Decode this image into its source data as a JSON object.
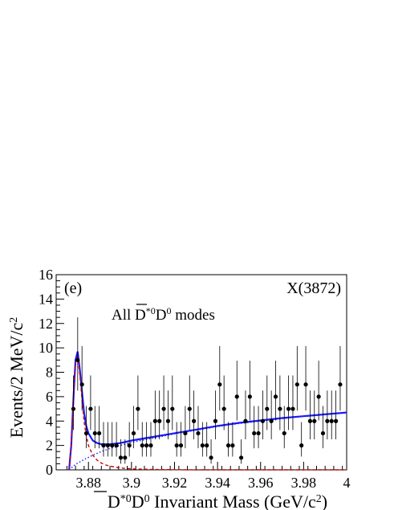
{
  "panel_label": "(e)",
  "resonance_label": "X(3872)",
  "mode_label": {
    "prefix": "All ",
    "bar_letter": "D",
    "star": "*0",
    "middle": "D",
    "zero": "0",
    "suffix": " modes"
  },
  "y_axis": {
    "text": "Events/2 MeV/c",
    "sup": "2"
  },
  "x_axis": {
    "bar_letter": "D",
    "star": "*0",
    "d": "D",
    "zero": "0",
    "text": " Invariant Mass (GeV/c",
    "sup": "2",
    "close": ")"
  },
  "chart_data": {
    "type": "scatter",
    "xlim": [
      3.865,
      4.0
    ],
    "ylim": [
      0,
      16
    ],
    "x_ticks": [
      3.88,
      3.9,
      3.92,
      3.94,
      3.96,
      3.98,
      4.0
    ],
    "x_tick_labels": [
      "3.88",
      "3.9",
      "3.92",
      "3.94",
      "3.96",
      "3.98",
      "4"
    ],
    "y_ticks": [
      0,
      2,
      4,
      6,
      8,
      10,
      12,
      14,
      16
    ],
    "y_tick_labels": [
      "0",
      "2",
      "4",
      "6",
      "8",
      "10",
      "12",
      "14",
      "16"
    ],
    "points": [
      {
        "x": 3.873,
        "y": 5
      },
      {
        "x": 3.875,
        "y": 9
      },
      {
        "x": 3.877,
        "y": 7
      },
      {
        "x": 3.879,
        "y": 3
      },
      {
        "x": 3.881,
        "y": 5
      },
      {
        "x": 3.883,
        "y": 3
      },
      {
        "x": 3.885,
        "y": 3
      },
      {
        "x": 3.887,
        "y": 2
      },
      {
        "x": 3.889,
        "y": 2
      },
      {
        "x": 3.891,
        "y": 2
      },
      {
        "x": 3.893,
        "y": 2
      },
      {
        "x": 3.895,
        "y": 1
      },
      {
        "x": 3.897,
        "y": 1
      },
      {
        "x": 3.899,
        "y": 2
      },
      {
        "x": 3.901,
        "y": 3
      },
      {
        "x": 3.903,
        "y": 5
      },
      {
        "x": 3.905,
        "y": 2
      },
      {
        "x": 3.907,
        "y": 2
      },
      {
        "x": 3.909,
        "y": 2
      },
      {
        "x": 3.911,
        "y": 4
      },
      {
        "x": 3.913,
        "y": 4
      },
      {
        "x": 3.915,
        "y": 5
      },
      {
        "x": 3.917,
        "y": 4
      },
      {
        "x": 3.919,
        "y": 5
      },
      {
        "x": 3.921,
        "y": 2
      },
      {
        "x": 3.923,
        "y": 2
      },
      {
        "x": 3.925,
        "y": 3
      },
      {
        "x": 3.927,
        "y": 5
      },
      {
        "x": 3.929,
        "y": 4
      },
      {
        "x": 3.931,
        "y": 3
      },
      {
        "x": 3.933,
        "y": 2
      },
      {
        "x": 3.935,
        "y": 2
      },
      {
        "x": 3.937,
        "y": 1
      },
      {
        "x": 3.939,
        "y": 4
      },
      {
        "x": 3.941,
        "y": 7
      },
      {
        "x": 3.943,
        "y": 5
      },
      {
        "x": 3.945,
        "y": 2
      },
      {
        "x": 3.947,
        "y": 2
      },
      {
        "x": 3.949,
        "y": 6
      },
      {
        "x": 3.951,
        "y": 1
      },
      {
        "x": 3.953,
        "y": 4
      },
      {
        "x": 3.955,
        "y": 6
      },
      {
        "x": 3.957,
        "y": 3
      },
      {
        "x": 3.959,
        "y": 3
      },
      {
        "x": 3.961,
        "y": 4
      },
      {
        "x": 3.963,
        "y": 5
      },
      {
        "x": 3.965,
        "y": 4
      },
      {
        "x": 3.967,
        "y": 6
      },
      {
        "x": 3.969,
        "y": 5
      },
      {
        "x": 3.971,
        "y": 3
      },
      {
        "x": 3.973,
        "y": 5
      },
      {
        "x": 3.975,
        "y": 5
      },
      {
        "x": 3.977,
        "y": 7
      },
      {
        "x": 3.979,
        "y": 2
      },
      {
        "x": 3.981,
        "y": 7
      },
      {
        "x": 3.983,
        "y": 4
      },
      {
        "x": 3.985,
        "y": 4
      },
      {
        "x": 3.987,
        "y": 6
      },
      {
        "x": 3.989,
        "y": 3
      },
      {
        "x": 3.991,
        "y": 4
      },
      {
        "x": 3.993,
        "y": 4
      },
      {
        "x": 3.995,
        "y": 4
      },
      {
        "x": 3.997,
        "y": 7
      }
    ],
    "curves": [
      {
        "style": "solid",
        "color": "#1a1aff",
        "x": [
          3.871,
          3.872,
          3.873,
          3.874,
          3.875,
          3.876,
          3.877,
          3.878,
          3.879,
          3.88,
          3.882,
          3.884,
          3.886,
          3.888,
          3.89,
          3.895,
          3.9,
          3.91,
          3.92,
          3.93,
          3.94,
          3.95,
          3.96,
          3.97,
          3.98,
          3.99,
          4.0
        ],
        "y": [
          0.0,
          2.0,
          5.8,
          9.0,
          9.7,
          8.2,
          6.4,
          4.6,
          3.6,
          3.0,
          2.4,
          2.2,
          2.1,
          2.1,
          2.1,
          2.2,
          2.4,
          2.7,
          3.0,
          3.3,
          3.6,
          3.85,
          4.05,
          4.25,
          4.4,
          4.55,
          4.7
        ]
      },
      {
        "style": "dashed",
        "color": "#cc0000",
        "x": [
          3.871,
          3.872,
          3.873,
          3.874,
          3.875,
          3.876,
          3.877,
          3.878,
          3.879,
          3.88,
          3.882,
          3.884,
          3.886,
          3.888,
          3.89,
          3.895,
          3.9,
          3.91,
          3.92,
          3.93,
          3.94,
          4.0
        ],
        "y": [
          0.0,
          2.0,
          5.8,
          8.8,
          9.3,
          7.8,
          5.8,
          3.9,
          2.8,
          2.0,
          1.2,
          0.8,
          0.55,
          0.4,
          0.3,
          0.15,
          0.08,
          0.03,
          0.01,
          0.0,
          0.0,
          0.0
        ]
      },
      {
        "style": "dotted",
        "color": "#1a1aff",
        "x": [
          3.871,
          3.874,
          3.878,
          3.882,
          3.886,
          3.89,
          3.895,
          3.9,
          3.91,
          3.92,
          3.93,
          3.94,
          3.95,
          3.96,
          3.97,
          3.98,
          3.99,
          4.0
        ],
        "y": [
          0.0,
          0.45,
          0.85,
          1.2,
          1.5,
          1.75,
          2.0,
          2.25,
          2.6,
          2.95,
          3.25,
          3.55,
          3.8,
          4.0,
          4.2,
          4.4,
          4.55,
          4.7
        ]
      }
    ]
  }
}
